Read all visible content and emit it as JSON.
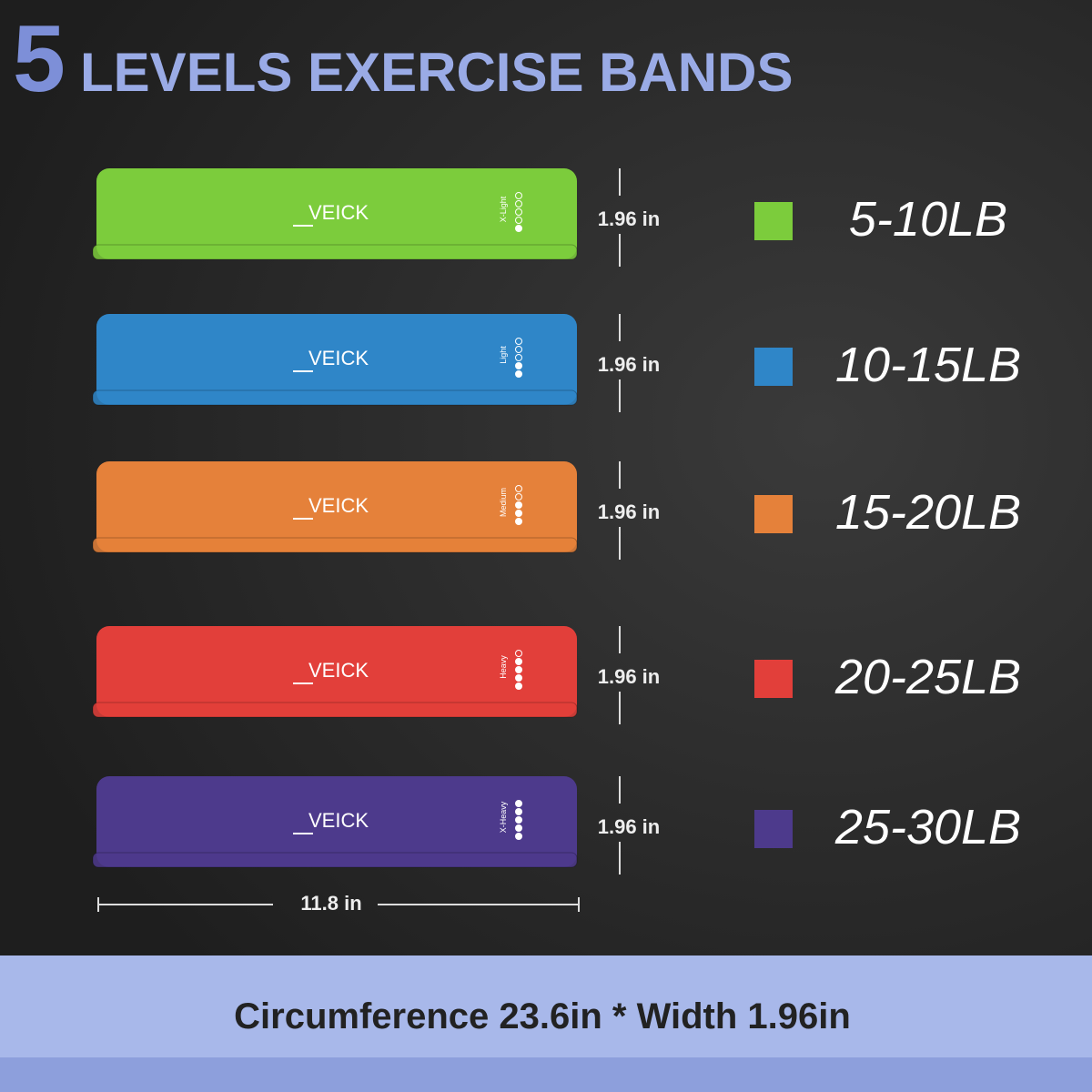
{
  "header": {
    "number": "5",
    "title": "LEVELS EXERCISE BANDS"
  },
  "bands": [
    {
      "brand": "VEICK",
      "level": "X-Light",
      "width": "1.96 in",
      "resistance": "5-10LB",
      "color": "#7ccc3c"
    },
    {
      "brand": "VEICK",
      "level": "Light",
      "width": "1.96 in",
      "resistance": "10-15LB",
      "color": "#2f86c8"
    },
    {
      "brand": "VEICK",
      "level": "Medium",
      "width": "1.96 in",
      "resistance": "15-20LB",
      "color": "#e5813a"
    },
    {
      "brand": "VEICK",
      "level": "Heavy",
      "width": "1.96 in",
      "resistance": "20-25LB",
      "color": "#e23f3a"
    },
    {
      "brand": "VEICK",
      "level": "X-Heavy",
      "width": "1.96 in",
      "resistance": "25-30LB",
      "color": "#4d3a8c"
    }
  ],
  "length": "11.8 in",
  "footer": "Circumference 23.6in * Width 1.96in"
}
